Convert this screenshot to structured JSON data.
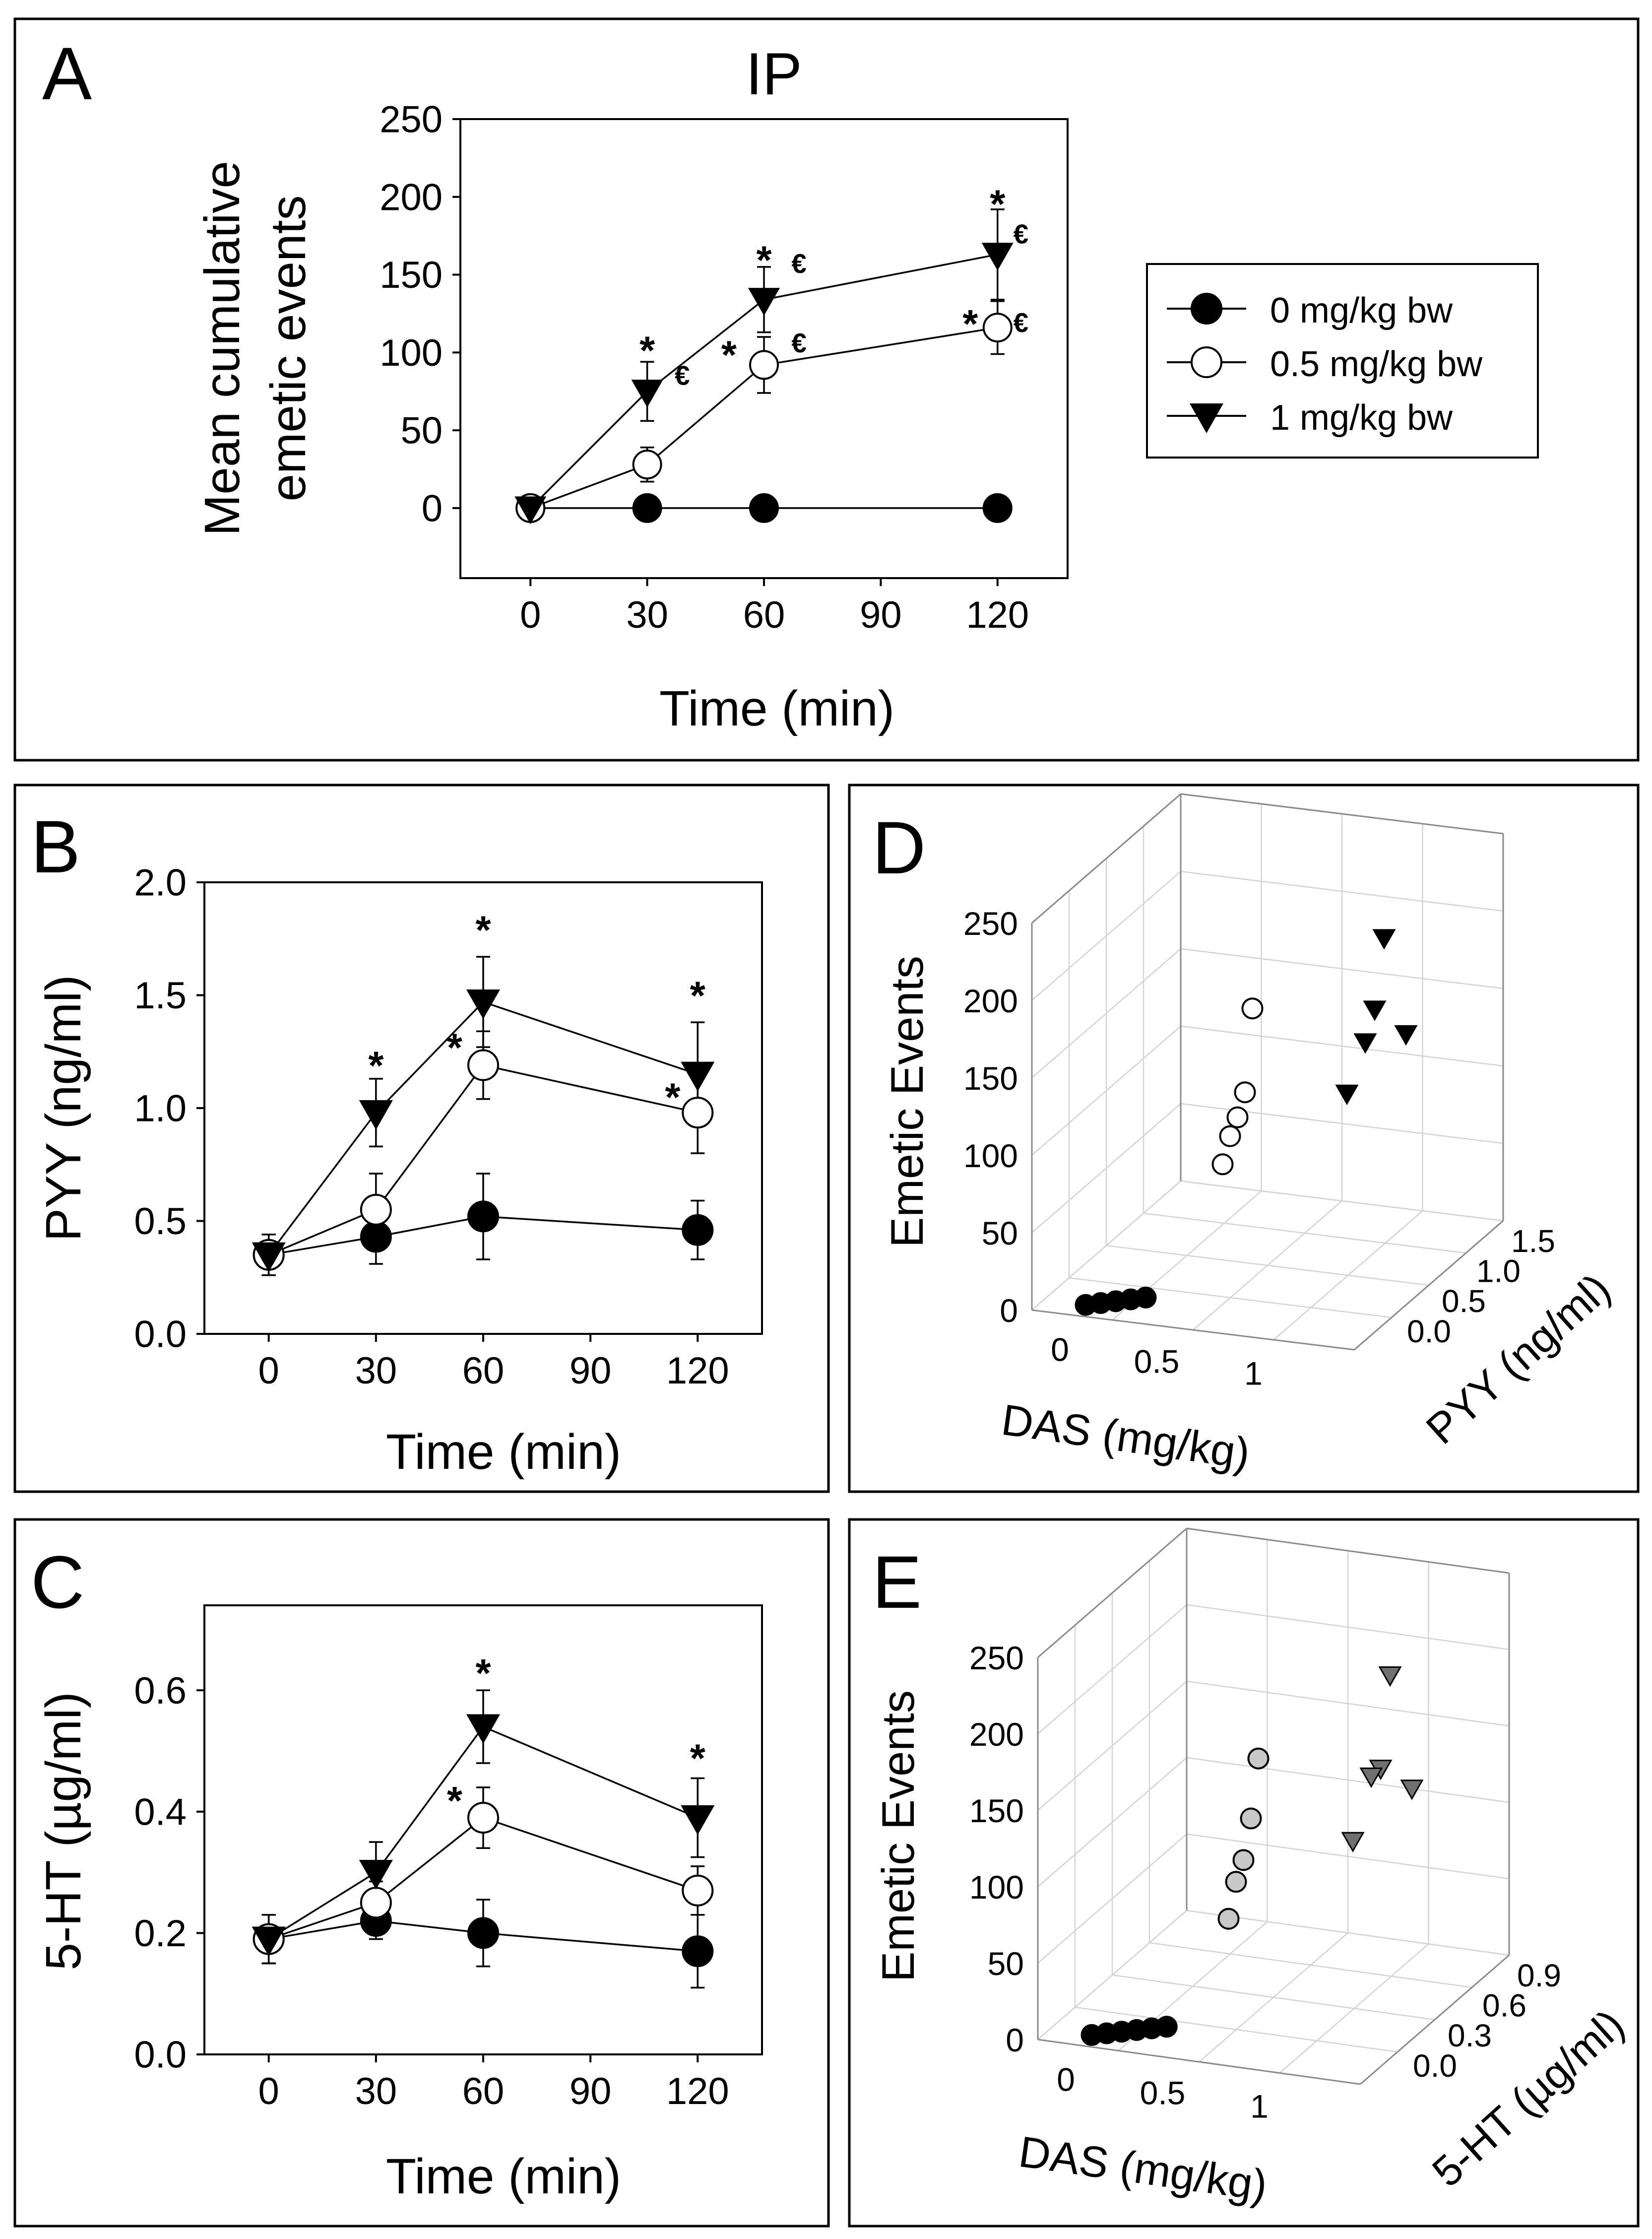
{
  "colors": {
    "ink": "#000000",
    "open_fill": "#ffffff",
    "gray_circle": "#c8c8c8",
    "gray_tri": "#707070",
    "grid": "#d4d4d4",
    "background": "#ffffff"
  },
  "chart_data": [
    {
      "panel": "A",
      "type": "line",
      "title": "IP",
      "xlabel": "Time (min)",
      "ylabel_lines": [
        "Mean cumulative",
        "emetic events"
      ],
      "x_ticks": [
        0,
        30,
        60,
        90,
        120
      ],
      "y_ticks": [
        0,
        50,
        100,
        150,
        200,
        250
      ],
      "xlim": [
        -18,
        138
      ],
      "ylim": [
        -45,
        250
      ],
      "legend_position": "right",
      "legend": [
        "0 mg/kg bw",
        "0.5 mg/kg bw",
        "1 mg/kg bw"
      ],
      "series": [
        {
          "name": "0 mg/kg bw",
          "marker": "circle-filled",
          "x": [
            0,
            30,
            60,
            120
          ],
          "values": [
            0,
            0,
            0,
            0
          ],
          "err": [
            0,
            0,
            0,
            0
          ]
        },
        {
          "name": "0.5 mg/kg bw",
          "marker": "circle-open",
          "x": [
            0,
            30,
            60,
            120
          ],
          "values": [
            0,
            28,
            92,
            116
          ],
          "err": [
            0,
            11,
            18,
            17
          ]
        },
        {
          "name": "1 mg/kg bw",
          "marker": "triangle-filled",
          "x": [
            0,
            30,
            60,
            120
          ],
          "values": [
            0,
            75,
            134,
            163
          ],
          "err": [
            0,
            19,
            21,
            29
          ]
        }
      ],
      "annotations": [
        {
          "text": "*",
          "x": 30,
          "y": 106
        },
        {
          "text": "€",
          "x": 39,
          "y": 84
        },
        {
          "text": "*",
          "x": 60,
          "y": 164
        },
        {
          "text": "€",
          "x": 69,
          "y": 156
        },
        {
          "text": "*",
          "x": 51,
          "y": 103
        },
        {
          "text": "€",
          "x": 69,
          "y": 105
        },
        {
          "text": "*",
          "x": 120,
          "y": 200
        },
        {
          "text": "€",
          "x": 126,
          "y": 175
        },
        {
          "text": "*",
          "x": 113,
          "y": 123
        },
        {
          "text": "€",
          "x": 126,
          "y": 118
        }
      ]
    },
    {
      "panel": "B",
      "type": "line",
      "title": "",
      "xlabel": "Time (min)",
      "ylabel_lines": [
        "PYY (ng/ml)"
      ],
      "x_ticks": [
        0,
        30,
        60,
        90,
        120
      ],
      "y_ticks": [
        0.0,
        0.5,
        1.0,
        1.5,
        2.0
      ],
      "tick_decimals": 1,
      "xlim": [
        -18,
        138
      ],
      "ylim": [
        0,
        2.0
      ],
      "series": [
        {
          "name": "0 mg/kg bw",
          "marker": "circle-filled",
          "x": [
            0,
            30,
            60,
            120
          ],
          "values": [
            0.35,
            0.43,
            0.52,
            0.46
          ],
          "err": [
            0.09,
            0.12,
            0.19,
            0.13
          ]
        },
        {
          "name": "0.5 mg/kg bw",
          "marker": "circle-open",
          "x": [
            0,
            30,
            60,
            120
          ],
          "values": [
            0.35,
            0.55,
            1.19,
            0.98
          ],
          "err": [
            0.09,
            0.16,
            0.15,
            0.18
          ]
        },
        {
          "name": "1 mg/kg bw",
          "marker": "triangle-filled",
          "x": [
            0,
            30,
            60,
            120
          ],
          "values": [
            0.35,
            0.98,
            1.47,
            1.15
          ],
          "err": [
            0.09,
            0.15,
            0.2,
            0.23
          ]
        }
      ],
      "annotations": [
        {
          "text": "*",
          "x": 30,
          "y": 1.22
        },
        {
          "text": "*",
          "x": 60,
          "y": 1.82
        },
        {
          "text": "*",
          "x": 52,
          "y": 1.3
        },
        {
          "text": "*",
          "x": 120,
          "y": 1.53
        },
        {
          "text": "*",
          "x": 113,
          "y": 1.08
        }
      ]
    },
    {
      "panel": "C",
      "type": "line",
      "title": "",
      "xlabel": "Time (min)",
      "ylabel_lines": [
        "5-HT (µg/ml)"
      ],
      "x_ticks": [
        0,
        30,
        60,
        90,
        120
      ],
      "y_ticks": [
        0.0,
        0.2,
        0.4,
        0.6
      ],
      "tick_decimals": 1,
      "xlim": [
        -18,
        138
      ],
      "ylim": [
        0,
        0.74
      ],
      "series": [
        {
          "name": "0 mg/kg bw",
          "marker": "circle-filled",
          "x": [
            0,
            30,
            60,
            120
          ],
          "values": [
            0.19,
            0.22,
            0.2,
            0.17
          ],
          "err": [
            0.04,
            0.03,
            0.055,
            0.06
          ]
        },
        {
          "name": "0.5 mg/kg bw",
          "marker": "circle-open",
          "x": [
            0,
            30,
            60,
            120
          ],
          "values": [
            0.19,
            0.25,
            0.39,
            0.27
          ],
          "err": [
            0.04,
            0.035,
            0.05,
            0.04
          ]
        },
        {
          "name": "1 mg/kg bw",
          "marker": "triangle-filled",
          "x": [
            0,
            30,
            60,
            120
          ],
          "values": [
            0.19,
            0.3,
            0.54,
            0.39
          ],
          "err": [
            0.04,
            0.05,
            0.06,
            0.065
          ]
        }
      ],
      "annotations": [
        {
          "text": "*",
          "x": 60,
          "y": 0.64
        },
        {
          "text": "*",
          "x": 52,
          "y": 0.43
        },
        {
          "text": "*",
          "x": 120,
          "y": 0.5
        }
      ]
    },
    {
      "panel": "D",
      "type": "scatter3d",
      "xlabel": "DAS (mg/kg)",
      "ylabel": "PYY (ng/ml)",
      "zlabel": "Emetic Events",
      "x_ticks": [
        "0",
        "0.5",
        "1"
      ],
      "y_ticks": [
        "0.0",
        "0.5",
        "1.0",
        "1.5"
      ],
      "z_ticks": [
        "0",
        "50",
        "100",
        "150",
        "200",
        "250"
      ],
      "points": [
        {
          "group": "0 mg/kg bw",
          "values": [
            0,
            0,
            0,
            0,
            0
          ]
        },
        {
          "group": "0.5 mg/kg bw",
          "values": [
            160,
            110,
            98,
            90,
            76
          ]
        },
        {
          "group": "1 mg/kg bw",
          "values": [
            200,
            155,
            135,
            134,
            108
          ]
        }
      ]
    },
    {
      "panel": "E",
      "type": "scatter3d",
      "xlabel": "DAS (mg/kg)",
      "ylabel": "5-HT (µg/ml)",
      "zlabel": "Emetic Events",
      "x_ticks": [
        "0",
        "0.5",
        "1"
      ],
      "y_ticks": [
        "0.0",
        "0.3",
        "0.6",
        "0.9"
      ],
      "z_ticks": [
        "0",
        "50",
        "100",
        "150",
        "200",
        "250"
      ],
      "points": [
        {
          "group": "0 mg/kg bw",
          "values": [
            0,
            0,
            0,
            0,
            0,
            0
          ]
        },
        {
          "group": "0.5 mg/kg bw",
          "values": [
            150,
            115,
            92,
            82,
            62
          ]
        },
        {
          "group": "1 mg/kg bw",
          "values": [
            200,
            140,
            136,
            122,
            100
          ]
        }
      ]
    }
  ]
}
